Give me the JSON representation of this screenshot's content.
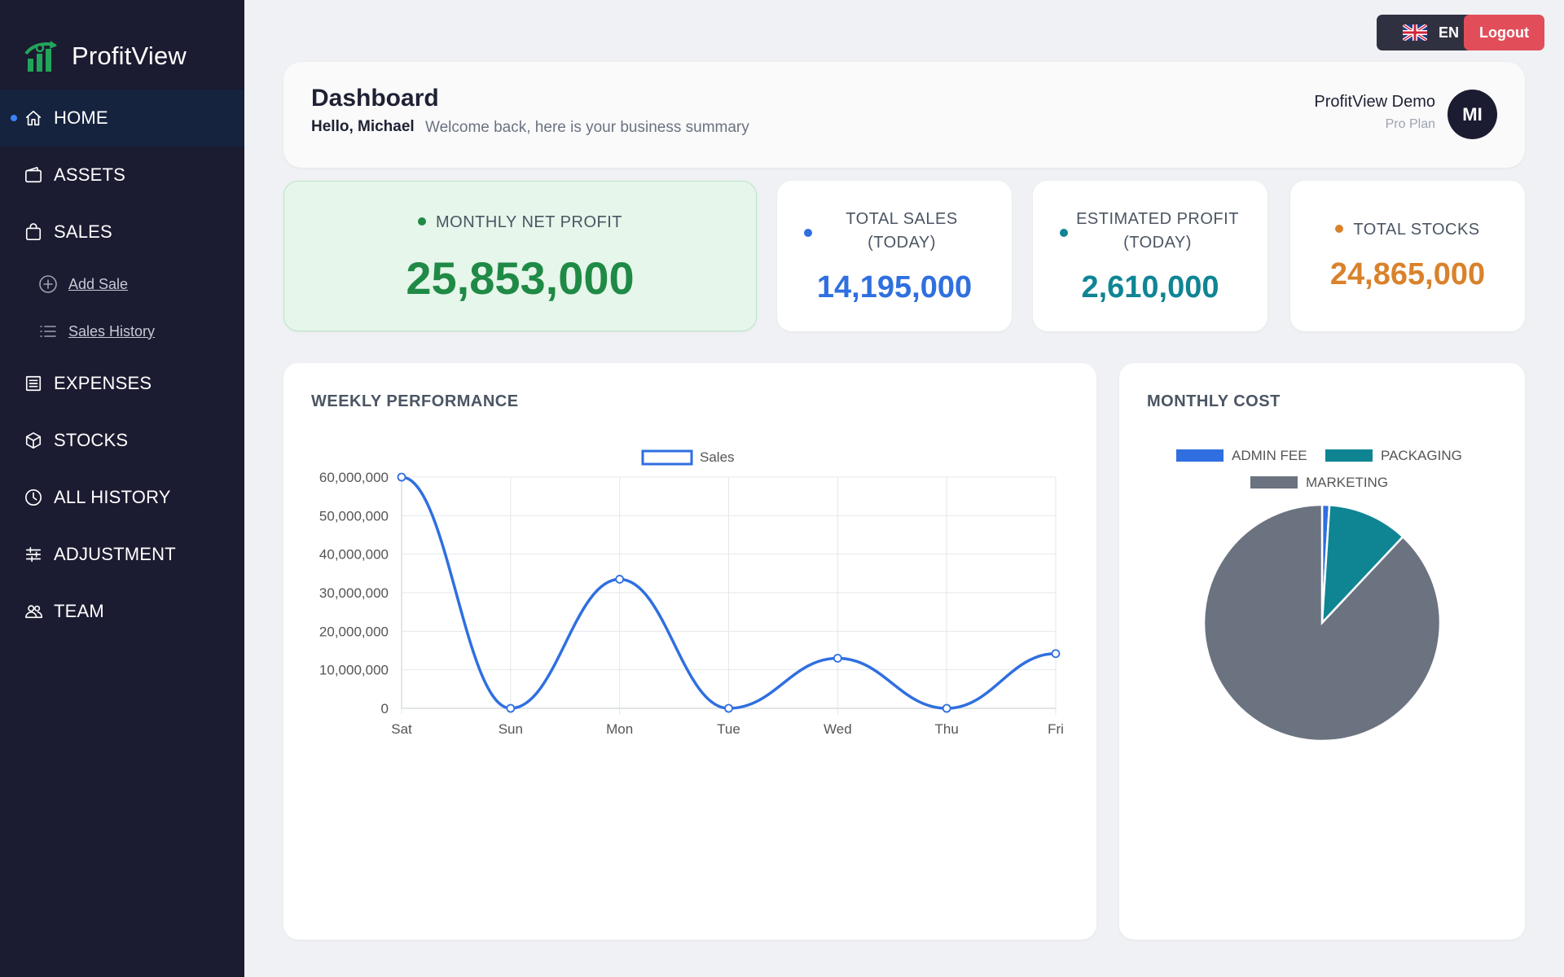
{
  "app": {
    "name": "ProfitView"
  },
  "nav": {
    "items": [
      {
        "label": "HOME",
        "icon": "home-icon"
      },
      {
        "label": "ASSETS",
        "icon": "wallet-icon"
      },
      {
        "label": "SALES",
        "icon": "shopping-bag-icon"
      },
      {
        "label": "EXPENSES",
        "icon": "receipt-icon"
      },
      {
        "label": "STOCKS",
        "icon": "box-icon"
      },
      {
        "label": "ALL HISTORY",
        "icon": "clock-icon"
      },
      {
        "label": "ADJUSTMENT",
        "icon": "sliders-icon"
      },
      {
        "label": "TEAM",
        "icon": "users-icon"
      }
    ],
    "sales_sub": [
      {
        "label": "Add Sale",
        "icon": "plus-circle-icon"
      },
      {
        "label": "Sales History",
        "icon": "list-icon"
      }
    ]
  },
  "topbar": {
    "lang_label": "EN",
    "logout_label": "Logout"
  },
  "header": {
    "title": "Dashboard",
    "greeting": "Hello, Michael",
    "welcome": "Welcome back, here is your business summary",
    "user_name": "ProfitView Demo",
    "user_plan": "Pro Plan",
    "avatar_initials": "MI"
  },
  "stats": {
    "monthly_net_profit": {
      "title": "MONTHLY NET PROFIT",
      "value": "25,853,000",
      "color": "#1f8a45"
    },
    "total_sales": {
      "title_line1": "TOTAL SALES",
      "title_line2": "(TODAY)",
      "value": "14,195,000",
      "color": "#2f6fe0"
    },
    "estimated_profit": {
      "title_line1": "ESTIMATED PROFIT",
      "title_line2": "(TODAY)",
      "value": "2,610,000",
      "color": "#0f8594"
    },
    "total_stocks": {
      "title": "TOTAL STOCKS",
      "value": "24,865,000",
      "color": "#d9822b"
    }
  },
  "weekly": {
    "title": "WEEKLY PERFORMANCE"
  },
  "monthly": {
    "title": "MONTHLY COST"
  },
  "chart_data": [
    {
      "type": "line",
      "categories": [
        "Sat",
        "Sun",
        "Mon",
        "Tue",
        "Wed",
        "Thu",
        "Fri"
      ],
      "series": [
        {
          "name": "Sales",
          "color": "#2f6fe0",
          "values": [
            60000000,
            0,
            33500000,
            0,
            13000000,
            0,
            14195000
          ]
        }
      ],
      "yticks": [
        0,
        10000000,
        20000000,
        30000000,
        40000000,
        50000000,
        60000000
      ],
      "ytick_labels": [
        "0",
        "10,000,000",
        "20,000,000",
        "30,000,000",
        "40,000,000",
        "50,000,000",
        "60,000,000"
      ],
      "ylim": [
        0,
        60000000
      ],
      "grid": true,
      "legend": "top",
      "smooth": true
    },
    {
      "type": "pie",
      "labels": [
        "ADMIN FEE",
        "PACKAGING",
        "MARKETING"
      ],
      "values": [
        1,
        11,
        88
      ],
      "colors": [
        "#2f6fe0",
        "#0f8594",
        "#6b7280"
      ],
      "legend": "top"
    }
  ]
}
